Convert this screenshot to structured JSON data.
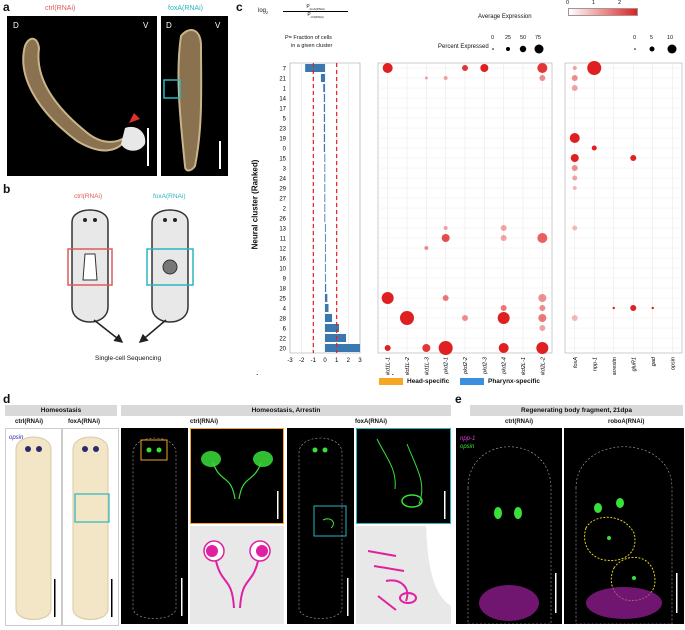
{
  "panel_labels": {
    "a": "a",
    "b": "b",
    "c": "c",
    "d": "d",
    "e": "e"
  },
  "panel_a": {
    "ctrl_label": "ctrl(RNAi)",
    "foxa_label": "foxA(RNAi)",
    "d1": "D",
    "v1": "V",
    "d2": "D",
    "v2": "V"
  },
  "panel_b": {
    "ctrl_label": "ctrl(RNAi)",
    "foxa_label": "foxA(RNAi)",
    "caption": "Single-cell Sequencing"
  },
  "panel_c": {
    "formula_log": "log",
    "formula_sub": "2",
    "formula_num": "P",
    "formula_num_sub": "foxA(RNAi)",
    "formula_den": "P",
    "formula_den_sub": "ctrl(RNAi)",
    "formula_p": "P= Fraction of cells",
    "formula_p2": "in a given cluster",
    "avg_expr_label": "Average Expression",
    "avg_ticks": [
      "0",
      "1",
      "2"
    ],
    "pct_label": "Percent Expressed",
    "pct_ticks_1": [
      "0",
      "25",
      "50",
      "75"
    ],
    "pct_ticks_2": [
      "0",
      "5",
      "10"
    ],
    "yaxis_label": "Neural cluster (Ranked)",
    "x_ticks": [
      "-3",
      "-2",
      "-1",
      "0",
      "1",
      "2",
      "3"
    ],
    "ctrl_arrow": "ctrl(RNAi)",
    "foxa_arrow": "foxA(RNAi)",
    "clusters": [
      "7",
      "21",
      "1",
      "14",
      "17",
      "5",
      "23",
      "19",
      "0",
      "15",
      "3",
      "24",
      "29",
      "27",
      "2",
      "26",
      "13",
      "11",
      "12",
      "16",
      "10",
      "9",
      "18",
      "25",
      "4",
      "28",
      "6",
      "22",
      "20"
    ],
    "genes1": [
      "pkd1L-1",
      "pkd1L-2",
      "pkd1L-3",
      "pkd2-1",
      "pkd2-2",
      "pkd2-3",
      "pkd2-4",
      "pkd2L-1",
      "pkd2L-2"
    ],
    "genes2": [
      "foxA",
      "npp-1",
      "arrestin",
      "gluR1",
      "gad",
      "opsin"
    ],
    "legend_head": "Head-specific",
    "legend_pharynx": "Pharynx-specific",
    "colors": {
      "head": "#f5a623",
      "pharynx": "#3a8fde",
      "bar": "#3b78b0",
      "dash": "#e02020"
    }
  },
  "chart_data": {
    "type": "bar",
    "title": "",
    "xlabel": "log2(P foxA(RNAi) / P ctrl(RNAi))",
    "ylabel": "Neural cluster (Ranked)",
    "xlim": [
      -3,
      3
    ],
    "categories": [
      "7",
      "21",
      "1",
      "14",
      "17",
      "5",
      "23",
      "19",
      "0",
      "15",
      "3",
      "24",
      "29",
      "27",
      "2",
      "26",
      "13",
      "11",
      "12",
      "16",
      "10",
      "9",
      "18",
      "25",
      "4",
      "28",
      "6",
      "22",
      "20"
    ],
    "values": [
      -1.7,
      -0.35,
      -0.15,
      -0.1,
      -0.1,
      -0.1,
      -0.1,
      -0.1,
      -0.1,
      -0.05,
      -0.05,
      -0.05,
      -0.05,
      -0.05,
      -0.05,
      -0.05,
      0.05,
      0.05,
      0.05,
      0.05,
      0.05,
      0.05,
      0.1,
      0.2,
      0.3,
      0.6,
      1.2,
      1.8,
      3.0
    ]
  },
  "panel_d": {
    "homeostasis": "Homeostasis",
    "homeostasis_arrestin": "Homeostasis, Arrestin",
    "ctrl1": "ctrl(RNAi)",
    "foxa1": "foxA(RNAi)",
    "ctrl2": "ctrl(RNAi)",
    "foxa2": "foxA(RNAi)",
    "opsin": "opsin"
  },
  "panel_e": {
    "header": "Regenerating body fragment, 21dpa",
    "ctrl": "ctrl(RNAi)",
    "roboa": "roboA(RNAi)",
    "npp1": "npp-1",
    "opsin": "opsin"
  }
}
